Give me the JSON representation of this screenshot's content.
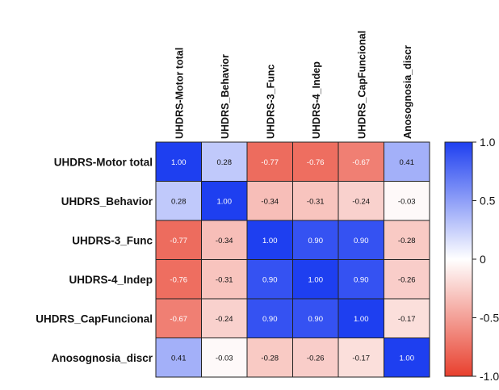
{
  "chart_data": {
    "type": "heatmap",
    "title": "",
    "row_labels": [
      "UHDRS-Motor total",
      "UHDRS_Behavior",
      "UHDRS-3_Func",
      "UHDRS-4_Indep",
      "UHDRS_CapFuncional",
      "Anosognosia_discr"
    ],
    "col_labels": [
      "UHDRS-Motor total",
      "UHDRS_Behavior",
      "UHDRS-3_Func",
      "UHDRS-4_Indep",
      "UHDRS_CapFuncional",
      "Anosognosia_discr"
    ],
    "values": [
      [
        1.0,
        0.28,
        -0.77,
        -0.76,
        -0.67,
        0.41
      ],
      [
        0.28,
        1.0,
        -0.34,
        -0.31,
        -0.24,
        -0.03
      ],
      [
        -0.77,
        -0.34,
        1.0,
        0.9,
        0.9,
        -0.28
      ],
      [
        -0.76,
        -0.31,
        0.9,
        1.0,
        0.9,
        -0.26
      ],
      [
        -0.67,
        -0.24,
        0.9,
        0.9,
        1.0,
        -0.17
      ],
      [
        0.41,
        -0.03,
        -0.28,
        -0.26,
        -0.17,
        1.0
      ]
    ],
    "value_labels": [
      [
        "1.00",
        "0.28",
        "-0.77",
        "-0.76",
        "-0.67",
        "0.41"
      ],
      [
        "0.28",
        "1.00",
        "-0.34",
        "-0.31",
        "-0.24",
        "-0.03"
      ],
      [
        "-0.77",
        "-0.34",
        "1.00",
        "0.90",
        "0.90",
        "-0.28"
      ],
      [
        "-0.76",
        "-0.31",
        "0.90",
        "1.00",
        "0.90",
        "-0.26"
      ],
      [
        "-0.67",
        "-0.24",
        "0.90",
        "0.90",
        "1.00",
        "-0.17"
      ],
      [
        "0.41",
        "-0.03",
        "-0.28",
        "-0.26",
        "-0.17",
        "1.00"
      ]
    ],
    "colorbar": {
      "range": [
        -1.0,
        1.0
      ],
      "ticks": [
        1.0,
        0.5,
        0,
        -0.5,
        -1.0
      ],
      "tick_labels": [
        "1.0",
        "0.5",
        "0",
        "-0.5",
        "-1.0"
      ]
    },
    "colors": {
      "negative": "#e8402e",
      "zero": "#ffffff",
      "positive": "#1e3ff0",
      "grid": "#222222"
    }
  }
}
